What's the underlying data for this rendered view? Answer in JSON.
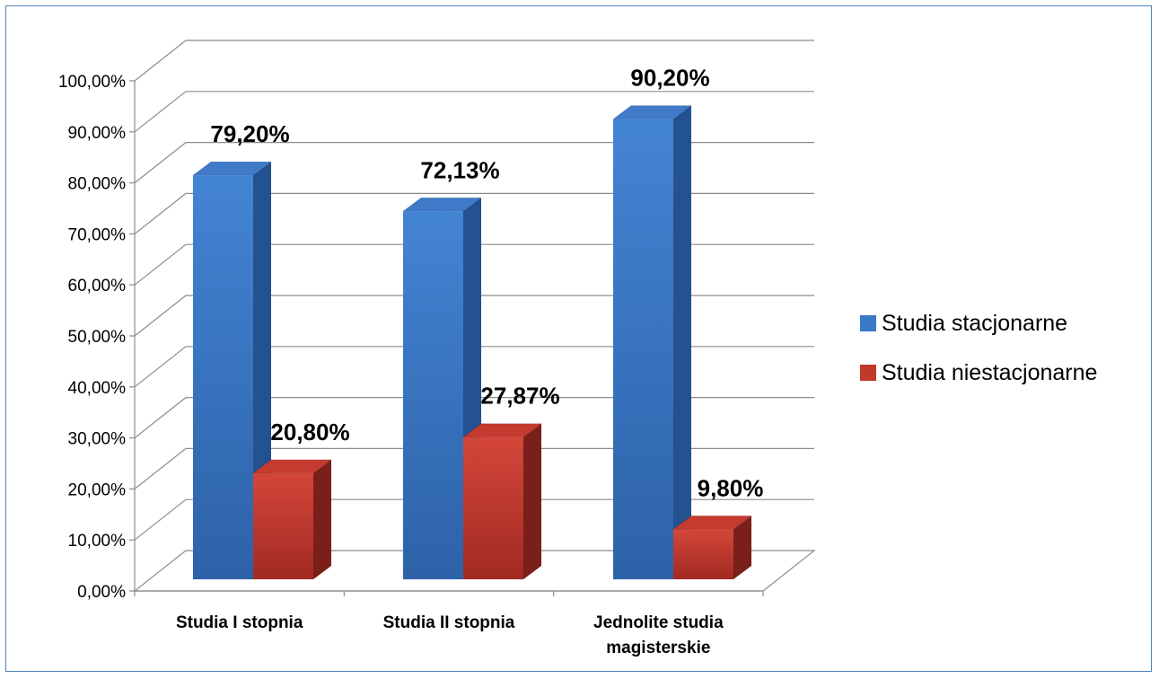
{
  "chart_data": {
    "type": "bar",
    "style": "3d-clustered-column",
    "categories": [
      "Studia I stopnia",
      "Studia II stopnia",
      "Jednolite studia magisterskie"
    ],
    "category_lines": [
      [
        "Studia I stopnia"
      ],
      [
        "Studia II stopnia"
      ],
      [
        "Jednolite studia",
        "magisterskie"
      ]
    ],
    "series": [
      {
        "name": "Studia stacjonarne",
        "values": [
          79.2,
          72.13,
          90.2
        ],
        "labels": [
          "79,20%",
          "72,13%",
          "90,20%"
        ],
        "color": "#3a78c8"
      },
      {
        "name": "Studia niestacjonarne",
        "values": [
          20.8,
          27.87,
          9.8
        ],
        "labels": [
          "20,80%",
          "27,87%",
          "9,80%"
        ],
        "color": "#c0392b"
      }
    ],
    "yticks": [
      0,
      10,
      20,
      30,
      40,
      50,
      60,
      70,
      80,
      90,
      100
    ],
    "ytick_labels": [
      "0,00%",
      "10,00%",
      "20,00%",
      "30,00%",
      "40,00%",
      "50,00%",
      "60,00%",
      "70,00%",
      "80,00%",
      "90,00%",
      "100,00%"
    ],
    "ylim": [
      0,
      100
    ],
    "xlabel": "",
    "ylabel": "",
    "title": "",
    "grid": true,
    "legend_position": "right"
  }
}
